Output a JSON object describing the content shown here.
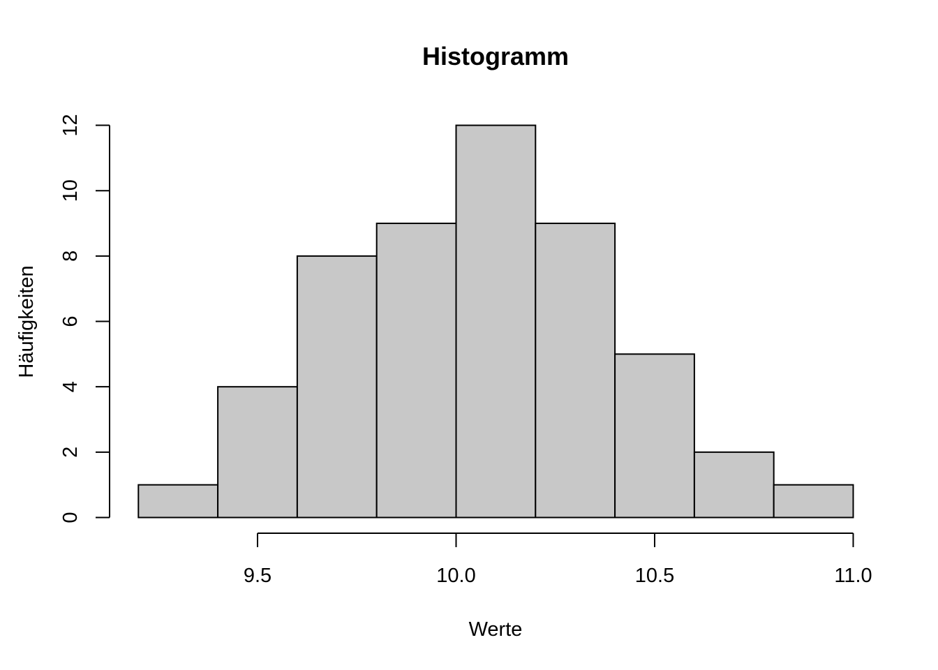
{
  "chart_data": {
    "type": "bar",
    "title": "Histogramm",
    "xlabel": "Werte",
    "ylabel": "Häufigkeiten",
    "bins": [
      {
        "from": 9.2,
        "to": 9.4,
        "count": 1
      },
      {
        "from": 9.4,
        "to": 9.6,
        "count": 4
      },
      {
        "from": 9.6,
        "to": 9.8,
        "count": 8
      },
      {
        "from": 9.8,
        "to": 10.0,
        "count": 9
      },
      {
        "from": 10.0,
        "to": 10.2,
        "count": 12
      },
      {
        "from": 10.2,
        "to": 10.4,
        "count": 9
      },
      {
        "from": 10.4,
        "to": 10.6,
        "count": 5
      },
      {
        "from": 10.6,
        "to": 10.8,
        "count": 2
      },
      {
        "from": 10.8,
        "to": 11.0,
        "count": 1
      }
    ],
    "x_ticks": [
      {
        "value": 9.5,
        "label": "9.5"
      },
      {
        "value": 10.0,
        "label": "10.0"
      },
      {
        "value": 10.5,
        "label": "10.5"
      },
      {
        "value": 11.0,
        "label": "11.0"
      }
    ],
    "y_ticks": [
      {
        "value": 0,
        "label": "0"
      },
      {
        "value": 2,
        "label": "2"
      },
      {
        "value": 4,
        "label": "4"
      },
      {
        "value": 6,
        "label": "6"
      },
      {
        "value": 8,
        "label": "8"
      },
      {
        "value": 10,
        "label": "10"
      },
      {
        "value": 12,
        "label": "12"
      }
    ],
    "ylim": [
      0,
      12
    ],
    "grid": false,
    "bar_color": "#c8c8c8",
    "edge_color": "#000000"
  }
}
